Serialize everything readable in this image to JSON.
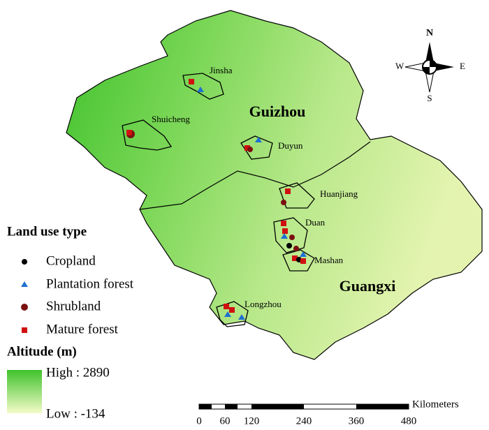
{
  "regions": [
    "Guizhou",
    "Guangxi"
  ],
  "counties": [
    "Jinsha",
    "Shuicheng",
    "Duyun",
    "Huanjiang",
    "Duan",
    "Mashan",
    "Longzhou"
  ],
  "compass": {
    "north": "N",
    "south": "S",
    "east": "E",
    "west": "W"
  },
  "land_use_legend": {
    "title": "Land use type",
    "items": [
      "Cropland",
      "Plantation forest",
      "Shrubland",
      "Mature forest"
    ]
  },
  "altitude_legend": {
    "title": "Altitude (m)",
    "high": "High : 2890",
    "low": "Low : -134"
  },
  "scale_bar": {
    "unit": "Kilometers",
    "labels": [
      "0",
      "60",
      "120",
      "240",
      "360",
      "480"
    ]
  }
}
